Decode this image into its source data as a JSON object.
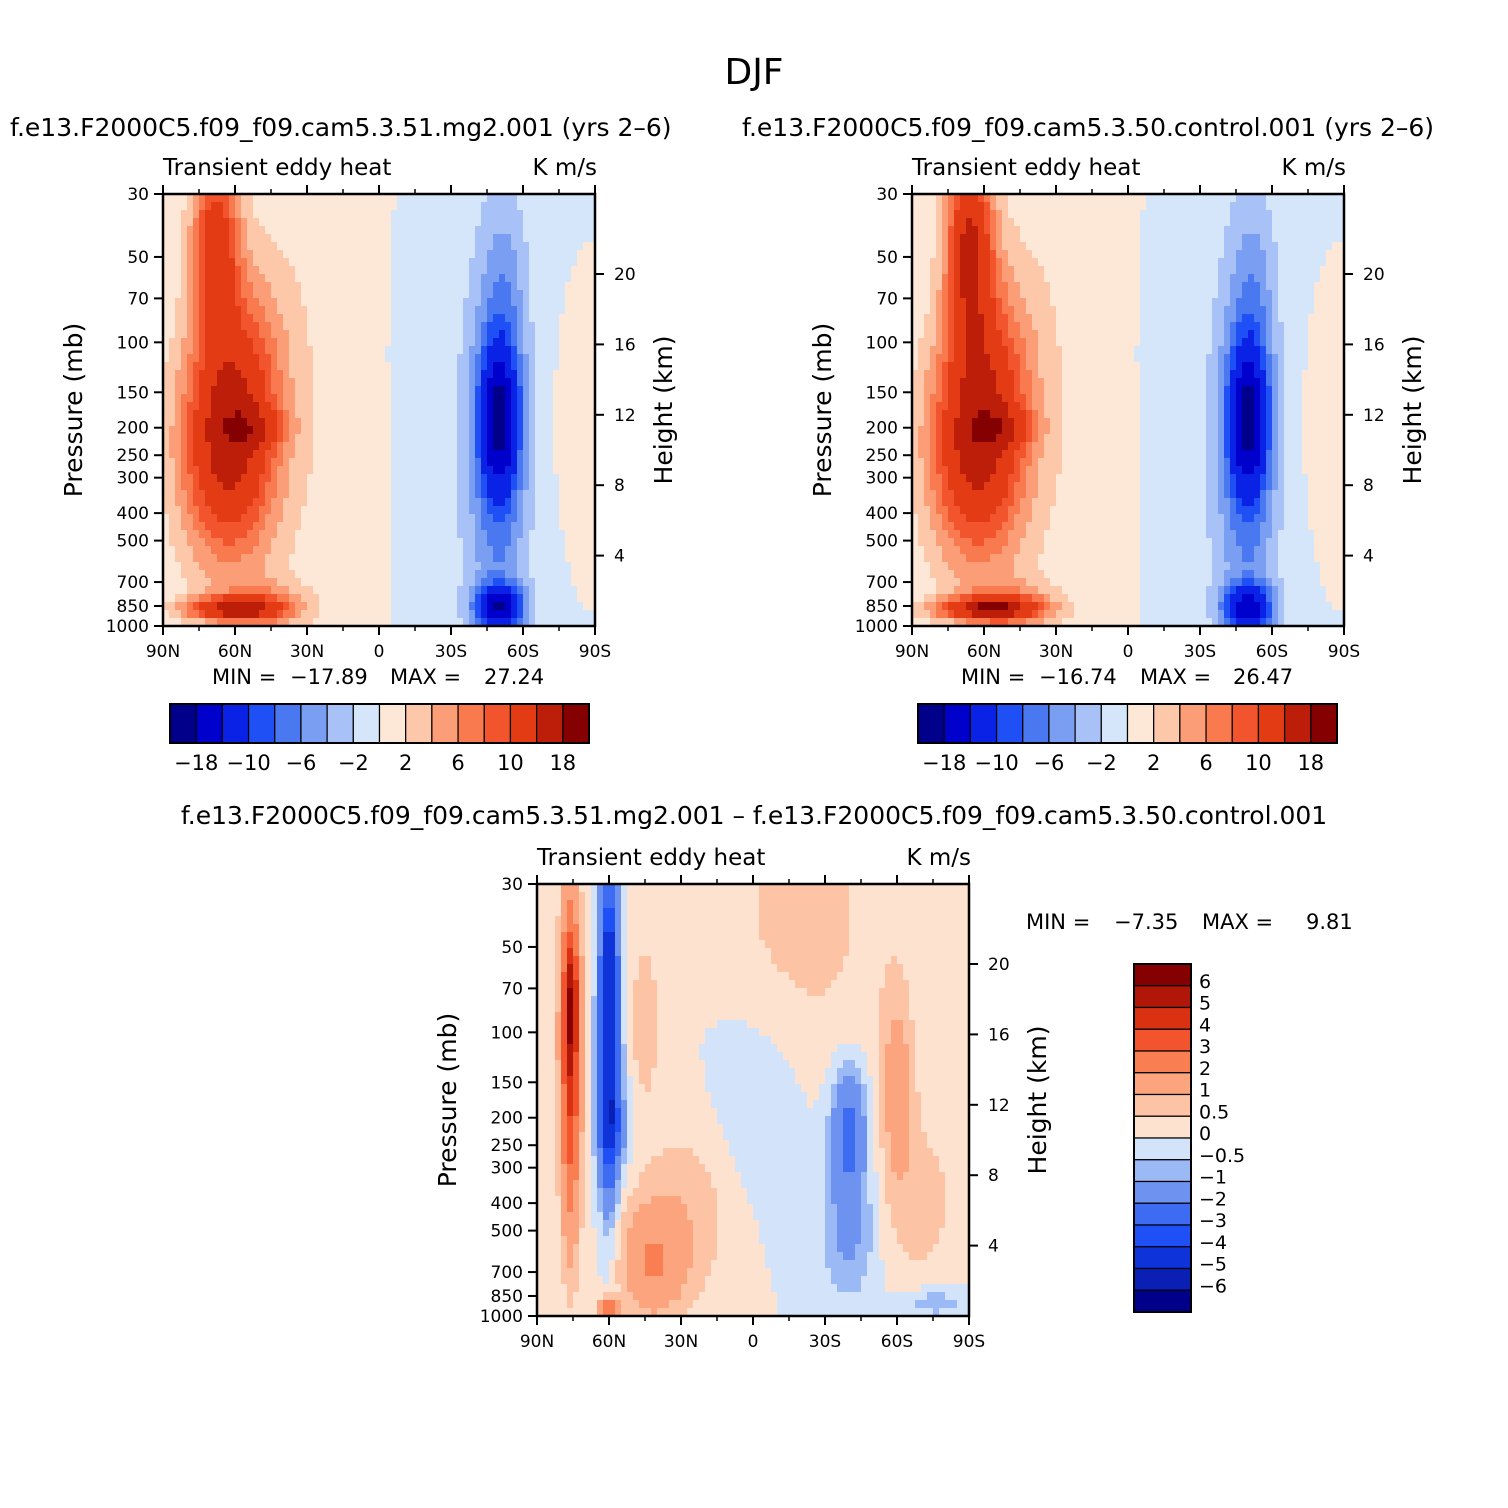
{
  "figure_title": "DJF",
  "colors": {
    "blue_scale": [
      "#00008b",
      "#0000cd",
      "#0a22e6",
      "#1e50f5",
      "#4a78f0",
      "#7a9ef2",
      "#a8c2f8",
      "#d6e6fa"
    ],
    "red_scale": [
      "#fde7d6",
      "#fdc7aa",
      "#fb9e78",
      "#f97a4f",
      "#f2542e",
      "#e33b14",
      "#bd1e0a",
      "#850000"
    ]
  },
  "chart_data": [
    {
      "type": "heatmap",
      "title": "f.e13.F2000C5.f09_f09.cam5.3.51.mg2.001 (yrs 2–6)",
      "left_label": "Transient eddy heat",
      "right_label": "K m/s",
      "ylabel": "Pressure (mb)",
      "y2label": "Height (km)",
      "x_ticks": [
        "90N",
        "60N",
        "30N",
        "0",
        "30S",
        "60S",
        "90S"
      ],
      "y_ticks": [
        "30",
        "50",
        "70",
        "100",
        "150",
        "200",
        "250",
        "300",
        "400",
        "500",
        "700",
        "850",
        "1000"
      ],
      "y2_ticks": [
        "20",
        "16",
        "12",
        "8",
        "4"
      ],
      "min_label": "MIN =",
      "min_value": "−17.89",
      "max_label": "MAX =",
      "max_value": "27.24",
      "colorbar_labels": [
        "−18",
        "−10",
        "−6",
        "−2",
        "2",
        "6",
        "10",
        "18"
      ],
      "fields": [
        {
          "x": 63,
          "y": 225,
          "sx": 14,
          "sy": 220,
          "v": 16
        },
        {
          "x": 68,
          "y": 45,
          "sx": 7,
          "sy": 32,
          "v": 12
        },
        {
          "x": 62,
          "y": 870,
          "sx": 14,
          "sy": 60,
          "v": 12
        },
        {
          "x": 50,
          "y": 200,
          "sx": 9,
          "sy": 25,
          "v": 4
        },
        {
          "x": 48,
          "y": 850,
          "sx": 12,
          "sy": 120,
          "v": 6
        },
        {
          "x": 52,
          "y": 100,
          "sx": 11,
          "sy": 80,
          "v": 3
        },
        {
          "x": 20,
          "y": 120,
          "sx": 22,
          "sy": 900,
          "v": 1.5
        },
        {
          "x": 5,
          "y": 500,
          "sx": 6,
          "sy": 700,
          "v": 1.2
        },
        {
          "x": -50,
          "y": 185,
          "sx": 6,
          "sy": 100,
          "v": -14
        },
        {
          "x": -50,
          "y": 860,
          "sx": 7,
          "sy": 110,
          "v": -14
        },
        {
          "x": -50,
          "y": 300,
          "sx": 9,
          "sy": 700,
          "v": -6
        },
        {
          "x": -52,
          "y": 60,
          "sx": 7,
          "sy": 40,
          "v": -3
        },
        {
          "x": -20,
          "y": 200,
          "sx": 22,
          "sy": 900,
          "v": -1.3
        },
        {
          "x": -84,
          "y": 200,
          "sx": 6,
          "sy": 120,
          "v": 1.5
        }
      ]
    },
    {
      "type": "heatmap",
      "title": "f.e13.F2000C5.f09_f09.cam5.3.50.control.001 (yrs 2–6)",
      "left_label": "Transient eddy heat",
      "right_label": "K m/s",
      "ylabel": "Pressure (mb)",
      "y2label": "Height (km)",
      "x_ticks": [
        "90N",
        "60N",
        "30N",
        "0",
        "30S",
        "60S",
        "90S"
      ],
      "y_ticks": [
        "30",
        "50",
        "70",
        "100",
        "150",
        "200",
        "250",
        "300",
        "400",
        "500",
        "700",
        "850",
        "1000"
      ],
      "y2_ticks": [
        "20",
        "16",
        "12",
        "8",
        "4"
      ],
      "min_label": "MIN =",
      "min_value": "−16.74",
      "max_label": "MAX =",
      "max_value": "26.47",
      "colorbar_labels": [
        "−18",
        "−10",
        "−6",
        "−2",
        "2",
        "6",
        "10",
        "18"
      ],
      "fields": [
        {
          "x": 63,
          "y": 225,
          "sx": 14,
          "sy": 220,
          "v": 16
        },
        {
          "x": 66,
          "y": 45,
          "sx": 7,
          "sy": 35,
          "v": 14
        },
        {
          "x": 60,
          "y": 870,
          "sx": 15,
          "sy": 60,
          "v": 13
        },
        {
          "x": 50,
          "y": 200,
          "sx": 9,
          "sy": 25,
          "v": 4
        },
        {
          "x": 48,
          "y": 850,
          "sx": 12,
          "sy": 120,
          "v": 6
        },
        {
          "x": 52,
          "y": 100,
          "sx": 11,
          "sy": 80,
          "v": 3
        },
        {
          "x": 20,
          "y": 120,
          "sx": 22,
          "sy": 900,
          "v": 1.5
        },
        {
          "x": 5,
          "y": 500,
          "sx": 6,
          "sy": 700,
          "v": 1.2
        },
        {
          "x": -50,
          "y": 185,
          "sx": 6,
          "sy": 100,
          "v": -14
        },
        {
          "x": -50,
          "y": 860,
          "sx": 7,
          "sy": 110,
          "v": -13
        },
        {
          "x": -50,
          "y": 300,
          "sx": 9,
          "sy": 700,
          "v": -6
        },
        {
          "x": -52,
          "y": 60,
          "sx": 7,
          "sy": 40,
          "v": -3
        },
        {
          "x": -20,
          "y": 200,
          "sx": 22,
          "sy": 900,
          "v": -1.3
        },
        {
          "x": -84,
          "y": 200,
          "sx": 6,
          "sy": 120,
          "v": 1.5
        }
      ]
    },
    {
      "type": "heatmap",
      "title": "f.e13.F2000C5.f09_f09.cam5.3.51.mg2.001 – f.e13.F2000C5.f09_f09.cam5.3.50.control.001",
      "left_label": "Transient eddy heat",
      "right_label": "K m/s",
      "ylabel": "Pressure (mb)",
      "y2label": "Height (km)",
      "x_ticks": [
        "90N",
        "60N",
        "30N",
        "0",
        "30S",
        "60S",
        "90S"
      ],
      "y_ticks": [
        "30",
        "50",
        "70",
        "100",
        "150",
        "200",
        "250",
        "300",
        "400",
        "500",
        "700",
        "850",
        "1000"
      ],
      "y2_ticks": [
        "20",
        "16",
        "12",
        "8",
        "4"
      ],
      "min_label": "MIN =",
      "min_value": "−7.35",
      "max_label": "MAX =",
      "max_value": "9.81",
      "colorbar_labels": [
        "6",
        "5",
        "4",
        "3",
        "2",
        "1",
        "0.5",
        "0",
        "−0.5",
        "−1",
        "−2",
        "−3",
        "−4",
        "−5",
        "−6"
      ],
      "fields": [
        {
          "x": 76,
          "y": 120,
          "sx": 3,
          "sy": 200,
          "v": 4.5
        },
        {
          "x": 76,
          "y": 80,
          "sx": 2,
          "sy": 30,
          "v": 2.5
        },
        {
          "x": 60,
          "y": 120,
          "sx": 3,
          "sy": 150,
          "v": -5
        },
        {
          "x": 60,
          "y": 45,
          "sx": 2.5,
          "sy": 25,
          "v": -2
        },
        {
          "x": 58,
          "y": 220,
          "sx": 5,
          "sy": 60,
          "v": -1.5
        },
        {
          "x": 42,
          "y": 650,
          "sx": 10,
          "sy": 250,
          "v": 1.8
        },
        {
          "x": 60,
          "y": 950,
          "sx": 3,
          "sy": 60,
          "v": 3
        },
        {
          "x": 45,
          "y": 90,
          "sx": 4,
          "sy": 50,
          "v": 1
        },
        {
          "x": 25,
          "y": 400,
          "sx": 18,
          "sy": 300,
          "v": 0.8
        },
        {
          "x": 0,
          "y": 200,
          "sx": 15,
          "sy": 200,
          "v": -0.6
        },
        {
          "x": -40,
          "y": 220,
          "sx": 5,
          "sy": 90,
          "v": -2.5
        },
        {
          "x": -40,
          "y": 500,
          "sx": 8,
          "sy": 250,
          "v": -1.2
        },
        {
          "x": -60,
          "y": 150,
          "sx": 5,
          "sy": 120,
          "v": 1.3
        },
        {
          "x": -75,
          "y": 900,
          "sx": 10,
          "sy": 80,
          "v": -1
        },
        {
          "x": -20,
          "y": 40,
          "sx": 25,
          "sy": 60,
          "v": 0.7
        },
        {
          "x": -70,
          "y": 400,
          "sx": 12,
          "sy": 300,
          "v": 0.7
        }
      ]
    }
  ]
}
